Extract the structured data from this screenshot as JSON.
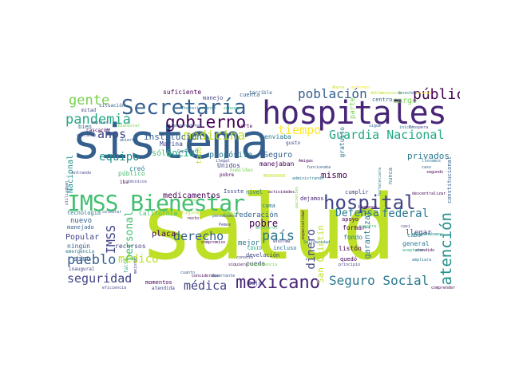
{
  "palette": [
    "#440154",
    "#482576",
    "#414487",
    "#35608d",
    "#2a788e",
    "#21918c",
    "#22a884",
    "#43bf71",
    "#7ad151",
    "#bddf26",
    "#fde725"
  ],
  "words": {
    "w1": {
      "t": "sistema",
      "c": "#35608d"
    },
    "w2": {
      "t": "salud",
      "c": "#bddf26"
    },
    "w3": {
      "t": "hospitales",
      "c": "#482576"
    },
    "w4": {
      "t": "Secretaría",
      "c": "#35608d"
    },
    "w5": {
      "t": "IMSS Bienestar",
      "c": "#43bf71"
    },
    "w6": {
      "t": "hospital",
      "c": "#414487"
    },
    "w7": {
      "t": "gobierno",
      "c": "#440154"
    },
    "w8": {
      "t": "mexicano",
      "c": "#482576"
    },
    "w9": {
      "t": "atención",
      "c": "#21918c"
    },
    "w10": {
      "t": "pandemia",
      "c": "#22a884"
    },
    "w11": {
      "t": "población",
      "c": "#35608d"
    },
    "w12": {
      "t": "pública",
      "c": "#440154"
    },
    "w13": {
      "t": "Guardia Nacional",
      "c": "#22a884"
    },
    "w14": {
      "t": "gente",
      "c": "#7ad151"
    },
    "w15": {
      "t": "tiempo",
      "c": "#fde725"
    },
    "w16": {
      "t": "medicina",
      "c": "#bddf26"
    },
    "w17": {
      "t": "años",
      "c": "#414487"
    },
    "w18": {
      "t": "equipo",
      "c": "#21918c"
    },
    "w19": {
      "t": "pueblo",
      "c": "#35608d"
    },
    "w20": {
      "t": "seguridad",
      "c": "#414487"
    },
    "w21": {
      "t": "Seguro Social",
      "c": "#2a788e"
    },
    "w22": {
      "t": "médica",
      "c": "#414487"
    },
    "w23": {
      "t": "derecho",
      "c": "#35608d"
    },
    "w24": {
      "t": "país",
      "c": "#2a788e"
    },
    "w25": {
      "t": "médico",
      "c": "#bddf26"
    },
    "w26": {
      "t": "IMSS",
      "c": "#414487"
    },
    "w27": {
      "t": "federal",
      "c": "#2a788e"
    },
    "w28": {
      "t": "Defensa",
      "c": "#2a788e"
    },
    "w29": {
      "t": "dinero",
      "c": "#414487"
    },
    "w30": {
      "t": "pobre",
      "c": "#440154"
    },
    "w31": {
      "t": "Social",
      "c": "#22a884"
    },
    "w32": {
      "t": "personal",
      "c": "#43bf71"
    },
    "w33": {
      "t": "medicamentos",
      "c": "#440154"
    },
    "w34": {
      "t": "institución",
      "c": "#35608d"
    },
    "w35": {
      "t": "privados",
      "c": "#2a788e"
    },
    "w36": {
      "t": "mismo",
      "c": "#440154"
    },
    "w37": {
      "t": "propósito",
      "c": "#2a788e"
    },
    "w38": {
      "t": "Seguro",
      "c": "#35608d"
    },
    "w39": {
      "t": "sólo",
      "c": "#43bf71"
    },
    "w40": {
      "t": "cargo",
      "c": "#7ad151"
    },
    "w41": {
      "t": "mejor",
      "c": "#2a788e"
    },
    "w42": {
      "t": "Unidos",
      "c": "#414487"
    },
    "w43": {
      "t": "manejaban",
      "c": "#440154"
    },
    "w44": {
      "t": "enviaba",
      "c": "#2a788e"
    },
    "w45": {
      "t": "Nacional",
      "c": "#21918c"
    },
    "w46": {
      "t": "suficiente",
      "c": "#440154"
    },
    "w47": {
      "t": "cuenta",
      "c": "#35608d"
    },
    "w48": {
      "t": "Marina",
      "c": "#414487"
    },
    "w49": {
      "t": "público",
      "c": "#43bf71"
    },
    "w50": {
      "t": "creó",
      "c": "#2a788e"
    },
    "w51": {
      "t": "incluso",
      "c": "#2a788e"
    },
    "w52": {
      "t": "Popular",
      "c": "#414487"
    },
    "w53": {
      "t": "nuevo",
      "c": "#35608d"
    },
    "w54": {
      "t": "sino",
      "c": "#35608d"
    },
    "w55": {
      "t": "recursos",
      "c": "#414487"
    },
    "w56": {
      "t": "placa",
      "c": "#440154"
    },
    "w57": {
      "t": "federación",
      "c": "#35608d"
    },
    "w58": {
      "t": "San Quintín",
      "c": "#bddf26"
    },
    "w59": {
      "t": "garantizar",
      "c": "#2a788e"
    },
    "w60": {
      "t": "llegar",
      "c": "#414487"
    },
    "w61": {
      "t": "formar",
      "c": "#440154"
    },
    "w62": {
      "t": "fondo",
      "c": "#2a788e"
    },
    "w63": {
      "t": "cabo",
      "c": "#2a788e"
    },
    "w64": {
      "t": "general",
      "c": "#2a788e"
    },
    "w65": {
      "t": "listón",
      "c": "#440154"
    },
    "w66": {
      "t": "quedó",
      "c": "#440154"
    },
    "w67": {
      "t": "pueda",
      "c": "#414487"
    },
    "w68": {
      "t": "develación",
      "c": "#414487"
    },
    "w69": {
      "t": "cumplir",
      "c": "#414487"
    },
    "w70": {
      "t": "dejamos",
      "c": "#482576"
    },
    "w71": {
      "t": "manejo",
      "c": "#414487"
    },
    "w72": {
      "t": "COVID",
      "c": "#22a884"
    },
    "w73": {
      "t": "Baja",
      "c": "#414487"
    },
    "w74": {
      "t": "cama",
      "c": "#2a788e"
    },
    "w75": {
      "t": "pobre",
      "c": "#440154"
    },
    "w76": {
      "t": "centro",
      "c": "#35608d"
    },
    "w77": {
      "t": "terrible",
      "c": "#35608d"
    },
    "w78": {
      "t": "bien",
      "c": "#35608d"
    },
    "w79": {
      "t": "mitad",
      "c": "#414487"
    },
    "w80": {
      "t": "situación",
      "c": "#35608d"
    },
    "w81": {
      "t": "corte",
      "c": "#440154"
    },
    "w82": {
      "t": "gusto",
      "c": "#414487"
    },
    "w83": {
      "t": "Issste",
      "c": "#414487"
    },
    "w84": {
      "t": "nivel",
      "c": "#2a788e"
    },
    "w85": {
      "t": "actividades",
      "c": "#440154"
    },
    "w86": {
      "t": "ningún",
      "c": "#35608d"
    },
    "w87": {
      "t": "tecnología",
      "c": "#2a788e"
    },
    "w88": {
      "t": "emergencia",
      "c": "#2a788e"
    },
    "w89": {
      "t": "inaugural",
      "c": "#414487"
    },
    "w90": {
      "t": "momentos",
      "c": "#440154"
    },
    "w91": {
      "t": "atendida",
      "c": "#414487"
    },
    "w92": {
      "t": "eficiencia",
      "c": "#414487"
    },
    "w93": {
      "t": "manejado",
      "c": "#35608d"
    },
    "w94": {
      "t": "California",
      "c": "#43bf71"
    },
    "w95": {
      "t": "original",
      "c": "#bddf26"
    },
    "w96": {
      "t": "pensábamos",
      "c": "#35608d"
    },
    "w97": {
      "t": "apoyo",
      "c": "#440154"
    },
    "w98": {
      "t": "atendido",
      "c": "#440154"
    },
    "w99": {
      "t": "sospechábamos",
      "c": "#21918c"
    },
    "w100": {
      "t": "ampliara",
      "c": "#2a788e"
    },
    "w101": {
      "t": "comprender",
      "c": "#440154"
    },
    "w102": {
      "t": "gratuito",
      "c": "#2a788e"
    },
    "w103": {
      "t": "parte",
      "c": "#7ad151"
    },
    "w104": {
      "t": "constitucional",
      "c": "#35608d"
    },
    "w105": {
      "t": "segundo",
      "c": "#440154"
    },
    "w106": {
      "t": "nunca",
      "c": "#2a788e"
    },
    "w107": {
      "t": "descentralizar",
      "c": "#440154"
    },
    "w108": {
      "t": "sigue",
      "c": "#35608d"
    },
    "w109": {
      "t": "inició",
      "c": "#2a788e"
    },
    "w110": {
      "t": "Prospera",
      "c": "#414487"
    },
    "w111": {
      "t": "gobernadores",
      "c": "#35608d"
    },
    "w112": {
      "t": "Posteriormente",
      "c": "#2a788e"
    },
    "w113": {
      "t": "MODERADOR",
      "c": "#bddf26"
    },
    "w114": {
      "t": "humildes",
      "c": "#7ad151"
    },
    "w115": {
      "t": "administrando",
      "c": "#2a788e"
    },
    "w116": {
      "t": "operando",
      "c": "#414487"
    },
    "w117": {
      "t": "ampliar",
      "c": "#35608d"
    },
    "w118": {
      "t": "cascarón",
      "c": "#440154"
    },
    "w119": {
      "t": "entrando",
      "c": "#414487"
    },
    "w120": {
      "t": "abierto",
      "c": "#35608d"
    },
    "w121": {
      "t": "Coplamar",
      "c": "#35608d"
    },
    "w122": {
      "t": "ilegal",
      "c": "#414487"
    },
    "w123": {
      "t": "todo",
      "c": "#bddf26"
    },
    "w124": {
      "t": "enorme",
      "c": "#414487"
    },
    "w125": {
      "t": "falta",
      "c": "#7ad151"
    },
    "w126": {
      "t": "siquiera",
      "c": "#440154"
    },
    "w127": {
      "t": "conoció",
      "c": "#414487"
    },
    "w128": {
      "t": "Amigas",
      "c": "#440154"
    },
    "w129": {
      "t": "funcionaba",
      "c": "#35608d"
    },
    "w130": {
      "t": "fortaleciera",
      "c": "#2a788e"
    },
    "w131": {
      "t": "llamaron",
      "c": "#440154"
    },
    "w132": {
      "t": "especialidad",
      "c": "#440154"
    },
    "w133": {
      "t": "Independencia",
      "c": "#7ad151"
    },
    "w134": {
      "t": "Solidaridad",
      "c": "#2a788e"
    },
    "w135": {
      "t": "Pemex",
      "c": "#414487"
    },
    "w136": {
      "t": "compromiso",
      "c": "#440154"
    },
    "w137": {
      "t": "utilizaban",
      "c": "#414487"
    },
    "w138": {
      "t": "celebrar",
      "c": "#35608d"
    },
    "w139": {
      "t": "faltó",
      "c": "#22a884"
    },
    "w140": {
      "t": "mejorar",
      "c": "#414487"
    },
    "w141": {
      "t": "considerában",
      "c": "#440154"
    },
    "w142": {
      "t": "importante",
      "c": "#35608d"
    },
    "w143": {
      "t": "resto",
      "c": "#440154"
    },
    "w144": {
      "t": "cuanto",
      "c": "#35608d"
    },
    "w145": {
      "t": "principio",
      "c": "#414487"
    },
    "w146": {
      "t": "llevamos",
      "c": "#2a788e"
    },
    "w147": {
      "t": "caso",
      "c": "#35608d"
    },
    "w148": {
      "t": "casi",
      "c": "#414487"
    },
    "w149": {
      "t": "doble",
      "c": "#bddf26"
    },
    "w150": {
      "t": "necesaria",
      "c": "#bddf26"
    },
    "w151": {
      "t": "derechos",
      "c": "#2a788e"
    },
    "w152": {
      "t": "corales",
      "c": "#fde725"
    },
    "w153": {
      "t": "nuestra",
      "c": "#43bf71"
    },
    "w154": {
      "t": "aceptaron",
      "c": "#22a884"
    },
    "w155": {
      "t": "pacientes",
      "c": "#7ad151"
    },
    "w156": {
      "t": "mejoraron",
      "c": "#43bf71"
    },
    "w157": {
      "t": "iba",
      "c": "#440154"
    },
    "w158": {
      "t": "técnicos",
      "c": "#414487"
    },
    "w159": {
      "t": "Bienestar",
      "c": "#7ad151"
    },
    "w160": {
      "t": "Ahora",
      "c": "#bddf26"
    },
    "w161": {
      "t": "enfermos",
      "c": "#fde725"
    },
    "w162": {
      "t": "conozco",
      "c": "#22a884"
    },
    "w163": {
      "t": "pueblos",
      "c": "#7ad151"
    }
  }
}
